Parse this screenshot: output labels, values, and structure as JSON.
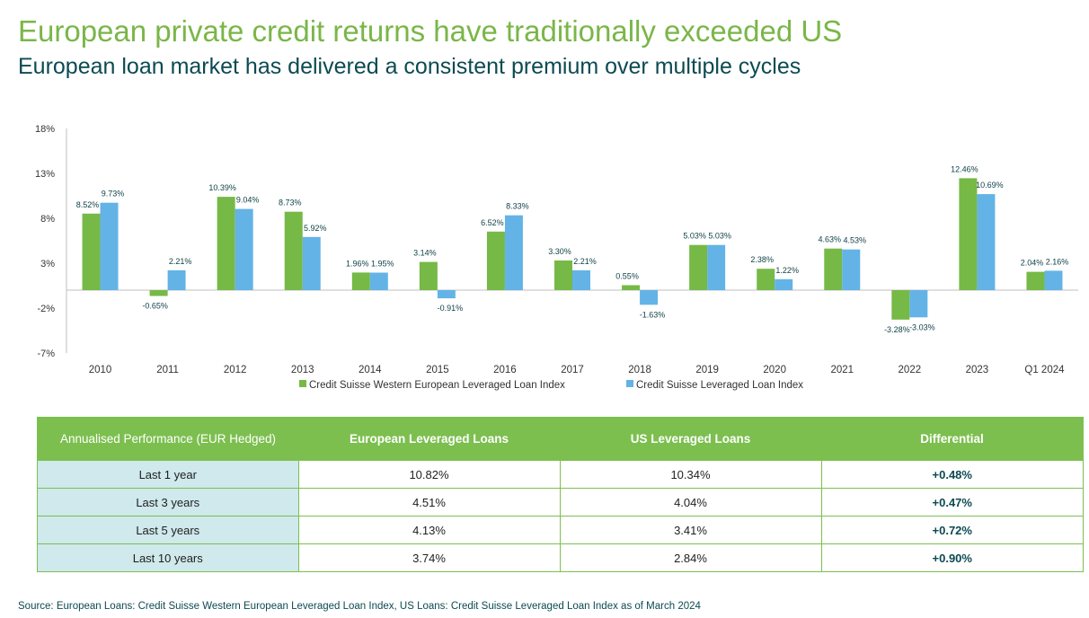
{
  "header": {
    "title": "European private credit returns have traditionally exceeded US",
    "subtitle": "European loan market has delivered a consistent premium over multiple cycles"
  },
  "colors": {
    "title": "#7ab648",
    "subtitle": "#0c4a52",
    "european_series": "#76b947",
    "us_series": "#63b3e6",
    "table_header_bg": "#7cbf4f",
    "table_label_bg": "#cfe9ec"
  },
  "chart_data": {
    "type": "bar",
    "title": "",
    "xlabel": "",
    "ylabel": "",
    "ylim": [
      -7,
      18
    ],
    "yticks": [
      18,
      13,
      8,
      3,
      -2,
      -7
    ],
    "ytick_labels": [
      "18%",
      "13%",
      "8%",
      "3%",
      "-2%",
      "-7%"
    ],
    "grid": false,
    "legend_position": "bottom-center",
    "categories": [
      "2010",
      "2011",
      "2012",
      "2013",
      "2014",
      "2015",
      "2016",
      "2017",
      "2018",
      "2019",
      "2020",
      "2021",
      "2022",
      "2023",
      "Q1 2024"
    ],
    "series": [
      {
        "name": "Credit Suisse Western European Leveraged Loan Index",
        "color": "#76b947",
        "values": [
          8.52,
          -0.65,
          10.39,
          8.73,
          1.96,
          3.14,
          6.52,
          3.3,
          0.55,
          5.03,
          2.38,
          4.63,
          -3.28,
          12.46,
          2.04
        ],
        "labels": [
          "8.52%",
          "-0.65%",
          "10.39%",
          "8.73%",
          "1.96%",
          "3.14%",
          "6.52%",
          "3.30%",
          "0.55%",
          "5.03%",
          "2.38%",
          "4.63%",
          "-3.28%",
          "12.46%",
          "2.04%"
        ]
      },
      {
        "name": "Credit Suisse Leveraged Loan Index",
        "color": "#63b3e6",
        "values": [
          9.73,
          2.21,
          9.04,
          5.92,
          1.95,
          -0.91,
          8.33,
          2.21,
          -1.63,
          5.03,
          1.22,
          4.53,
          -3.03,
          10.69,
          2.16
        ],
        "labels": [
          "9.73%",
          "2.21%",
          "9.04%",
          "5.92%",
          "1.95%",
          "-0.91%",
          "8.33%",
          "2.21%",
          "-1.63%",
          "5.03%",
          "1.22%",
          "4.53%",
          "-3.03%",
          "10.69%",
          "2.16%"
        ]
      }
    ]
  },
  "table": {
    "headers": [
      "Annualised Performance (EUR Hedged)",
      "European Leveraged Loans",
      "US Leveraged Loans",
      "Differential"
    ],
    "rows": [
      {
        "period": "Last 1 year",
        "european": "10.82%",
        "us": "10.34%",
        "diff": "+0.48%"
      },
      {
        "period": "Last 3 years",
        "european": "4.51%",
        "us": "4.04%",
        "diff": "+0.47%"
      },
      {
        "period": "Last 5 years",
        "european": "4.13%",
        "us": "3.41%",
        "diff": "+0.72%"
      },
      {
        "period": "Last 10 years",
        "european": "3.74%",
        "us": "2.84%",
        "diff": "+0.90%"
      }
    ]
  },
  "footer": {
    "source": "Source: European Loans: Credit Suisse Western European Leveraged Loan Index, US Loans: Credit Suisse Leveraged Loan Index as of March 2024"
  }
}
